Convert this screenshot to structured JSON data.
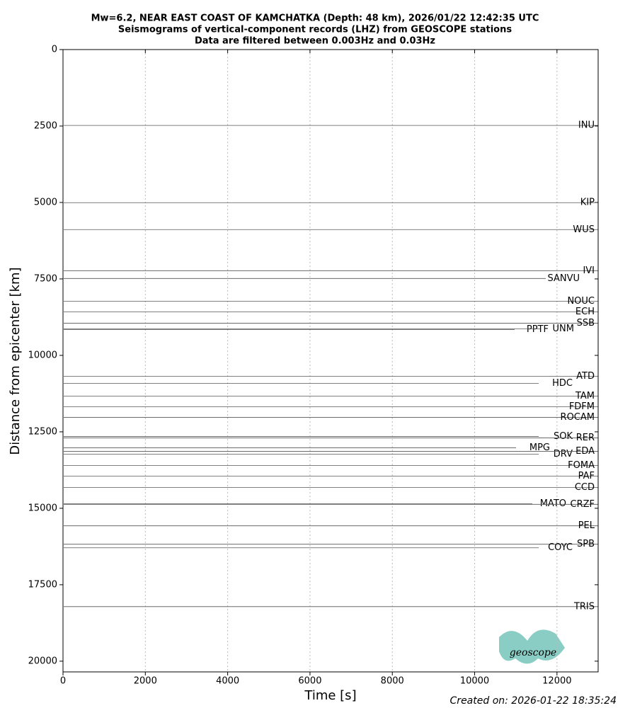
{
  "chart_data": {
    "type": "record_section",
    "title": [
      "Mw=6.2, NEAR EAST COAST OF KAMCHATKA (Depth: 48 km), 2026/01/22 12:42:35 UTC",
      "Seismograms of vertical-component records (LHZ) from GEOSCOPE stations",
      "Data are filtered between 0.003Hz and 0.03Hz"
    ],
    "x_label": "Time [s]",
    "y_label": "Distance from epicenter [km]",
    "xlim": [
      0,
      13000
    ],
    "xticks": [
      0,
      2000,
      4000,
      6000,
      8000,
      10000,
      12000
    ],
    "ylim": [
      0,
      20350
    ],
    "yticks": [
      0,
      2500,
      5000,
      7500,
      10000,
      12500,
      15000,
      17500,
      20000
    ],
    "y_inverted": true,
    "grid": "x",
    "trace_color": "#555555",
    "grid_color": "#bbbbbb",
    "stations": [
      {
        "name": "INU",
        "distance": 2480
      },
      {
        "name": "KIP",
        "distance": 5006
      },
      {
        "name": "WUS",
        "distance": 5887
      },
      {
        "name": "IVI",
        "distance": 7230
      },
      {
        "name": "SANVU",
        "distance": 7485
      },
      {
        "name": "NOUC",
        "distance": 8227
      },
      {
        "name": "ECH",
        "distance": 8575
      },
      {
        "name": "SSB",
        "distance": 8946
      },
      {
        "name": "PPTF",
        "distance": 9154
      },
      {
        "name": "UNM",
        "distance": 9131
      },
      {
        "name": "ATD",
        "distance": 10684
      },
      {
        "name": "HDC",
        "distance": 10916
      },
      {
        "name": "TAM",
        "distance": 11333
      },
      {
        "name": "FDFM",
        "distance": 11680
      },
      {
        "name": "ROCAM",
        "distance": 12028
      },
      {
        "name": "SOK",
        "distance": 12654
      },
      {
        "name": "RER",
        "distance": 12700
      },
      {
        "name": "MPG",
        "distance": 13024
      },
      {
        "name": "DRV",
        "distance": 13233
      },
      {
        "name": "EDA",
        "distance": 13140
      },
      {
        "name": "FOMA",
        "distance": 13604
      },
      {
        "name": "PAF",
        "distance": 13951
      },
      {
        "name": "CCD",
        "distance": 14322
      },
      {
        "name": "MATO",
        "distance": 14855
      },
      {
        "name": "CRZF",
        "distance": 14870
      },
      {
        "name": "PEL",
        "distance": 15574
      },
      {
        "name": "SPB",
        "distance": 16176
      },
      {
        "name": "COYC",
        "distance": 16292
      },
      {
        "name": "TRIS",
        "distance": 18216
      }
    ],
    "footer": "Created on: 2026-01-22 18:35:24",
    "logo": "geoscope"
  }
}
